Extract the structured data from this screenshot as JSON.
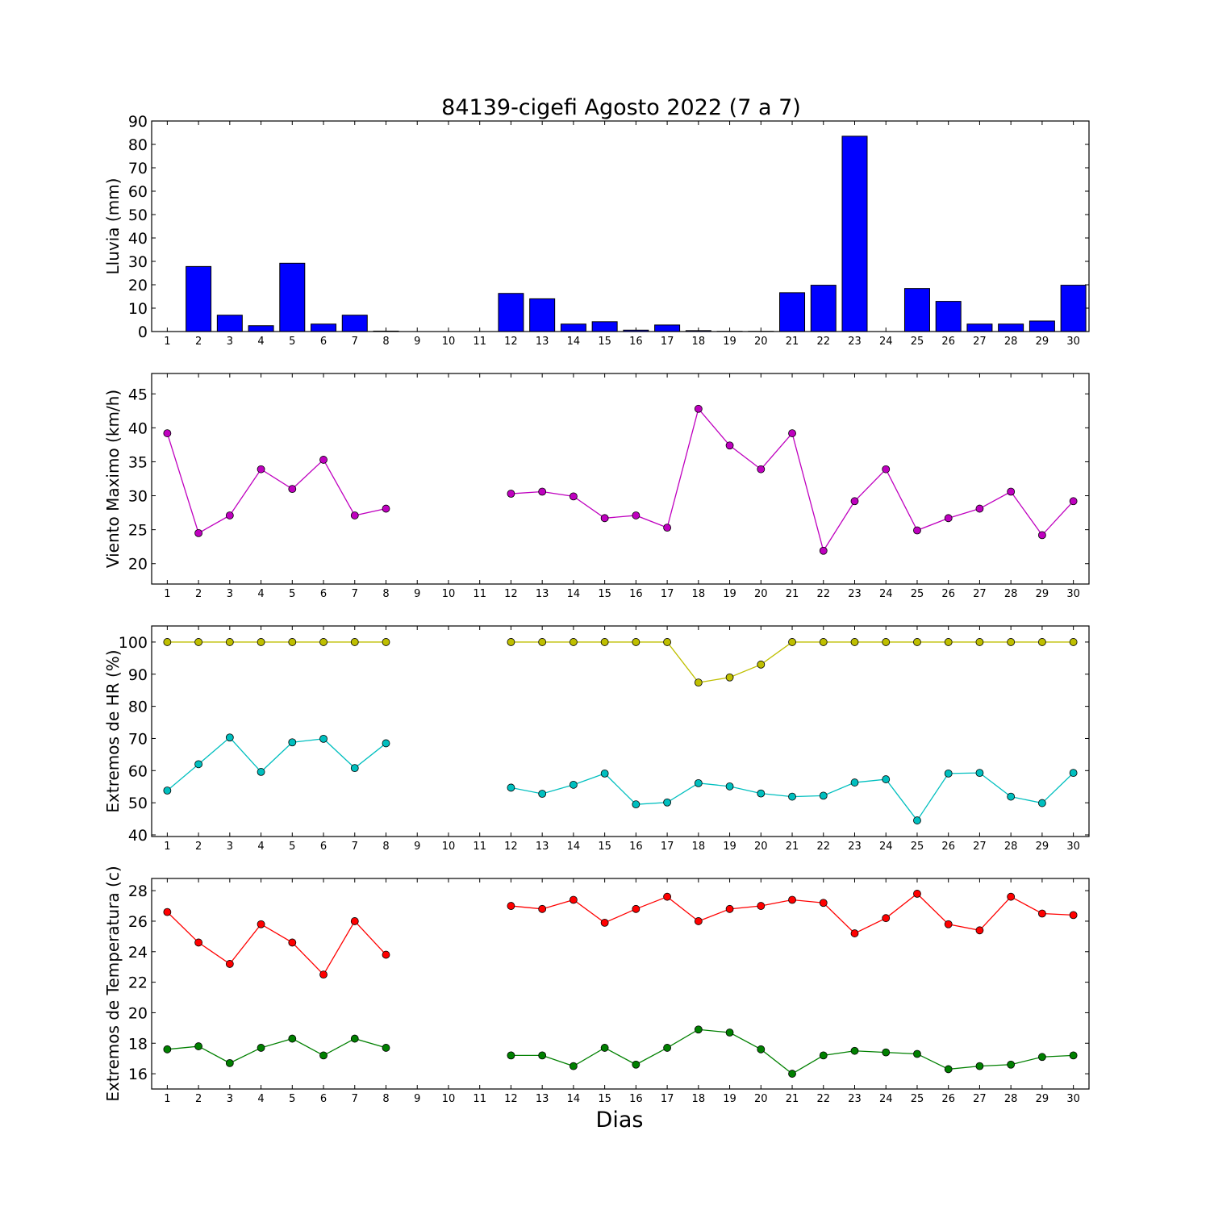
{
  "title": "84139-cigefi Agosto 2022  (7 a 7)",
  "xlabel": "Dias",
  "chart_data": [
    {
      "type": "bar",
      "ylabel": "Lluvia (mm)",
      "ylim": [
        0,
        90
      ],
      "yticks": [
        0,
        10,
        20,
        30,
        40,
        50,
        60,
        70,
        80,
        90
      ],
      "x": [
        1,
        2,
        3,
        4,
        5,
        6,
        7,
        8,
        9,
        10,
        11,
        12,
        13,
        14,
        15,
        16,
        17,
        18,
        19,
        20,
        21,
        22,
        23,
        24,
        25,
        26,
        27,
        28,
        29,
        30
      ],
      "series": [
        {
          "color": "#0000ff",
          "values": [
            0,
            27.8,
            7,
            2.5,
            29.2,
            3.2,
            7,
            0.2,
            0,
            0,
            0,
            16.3,
            14,
            3.2,
            4.2,
            0.6,
            2.8,
            0.4,
            0.1,
            0.1,
            16.6,
            19.8,
            83.5,
            0,
            18.4,
            12.9,
            3.2,
            3.2,
            4.5,
            19.8
          ]
        }
      ]
    },
    {
      "type": "line",
      "ylabel": "Viento Maximo (km/h)",
      "ylim": [
        17,
        48
      ],
      "yticks": [
        20,
        25,
        30,
        35,
        40,
        45
      ],
      "x": [
        1,
        2,
        3,
        4,
        5,
        6,
        7,
        8,
        9,
        10,
        11,
        12,
        13,
        14,
        15,
        16,
        17,
        18,
        19,
        20,
        21,
        22,
        23,
        24,
        25,
        26,
        27,
        28,
        29,
        30
      ],
      "series": [
        {
          "color": "#bf00bf",
          "values": [
            39.2,
            24.5,
            27.1,
            33.9,
            31,
            35.3,
            27.1,
            28.1,
            null,
            null,
            null,
            30.3,
            30.6,
            29.9,
            26.7,
            27.1,
            25.3,
            42.8,
            37.4,
            33.9,
            39.2,
            21.9,
            29.2,
            33.9,
            24.9,
            26.7,
            28.1,
            30.6,
            24.2,
            29.2
          ]
        }
      ]
    },
    {
      "type": "line",
      "ylabel": "Extremos de HR (%)",
      "ylim": [
        39.5,
        105
      ],
      "yticks": [
        40,
        50,
        60,
        70,
        80,
        90,
        100
      ],
      "x": [
        1,
        2,
        3,
        4,
        5,
        6,
        7,
        8,
        9,
        10,
        11,
        12,
        13,
        14,
        15,
        16,
        17,
        18,
        19,
        20,
        21,
        22,
        23,
        24,
        25,
        26,
        27,
        28,
        29,
        30
      ],
      "series": [
        {
          "color": "#bfbf00",
          "values": [
            100,
            100,
            100,
            100,
            100,
            100,
            100,
            100,
            null,
            null,
            null,
            100,
            100,
            100,
            100,
            100,
            100,
            87.4,
            89,
            93,
            100,
            100,
            100,
            100,
            100,
            100,
            100,
            100,
            100,
            100
          ]
        },
        {
          "color": "#00bfbf",
          "values": [
            53.8,
            62,
            70.3,
            59.6,
            68.8,
            69.9,
            60.8,
            68.5,
            null,
            null,
            null,
            54.7,
            52.8,
            55.6,
            59.1,
            49.5,
            50.1,
            56.1,
            55.1,
            52.9,
            51.9,
            52.2,
            56.3,
            57.3,
            44.5,
            59.1,
            59.3,
            51.9,
            49.9,
            59.3
          ]
        }
      ]
    },
    {
      "type": "line",
      "ylabel": "Extremos de Temperatura (c)",
      "ylim": [
        15,
        28.8
      ],
      "yticks": [
        16,
        18,
        20,
        22,
        24,
        26,
        28
      ],
      "x": [
        1,
        2,
        3,
        4,
        5,
        6,
        7,
        8,
        9,
        10,
        11,
        12,
        13,
        14,
        15,
        16,
        17,
        18,
        19,
        20,
        21,
        22,
        23,
        24,
        25,
        26,
        27,
        28,
        29,
        30
      ],
      "series": [
        {
          "color": "#ff0000",
          "values": [
            26.6,
            24.6,
            23.2,
            25.8,
            24.6,
            22.5,
            26,
            23.8,
            null,
            null,
            null,
            27,
            26.8,
            27.4,
            25.9,
            26.8,
            27.6,
            26,
            26.8,
            27,
            27.4,
            27.2,
            25.2,
            26.2,
            27.8,
            25.8,
            25.4,
            27.6,
            26.5,
            26.4
          ]
        },
        {
          "color": "#008000",
          "values": [
            17.6,
            17.8,
            16.7,
            17.7,
            18.3,
            17.2,
            18.3,
            17.7,
            null,
            null,
            null,
            17.2,
            17.2,
            16.5,
            17.7,
            16.6,
            17.7,
            18.9,
            18.7,
            17.6,
            16,
            17.2,
            17.5,
            17.4,
            17.3,
            16.3,
            16.5,
            16.6,
            17.1,
            17.2
          ]
        }
      ]
    }
  ]
}
